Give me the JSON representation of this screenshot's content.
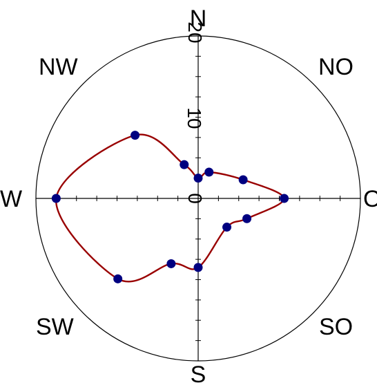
{
  "chart_data": {
    "type": "polar",
    "title": "",
    "directions": {
      "north": "N",
      "northeast": "NO",
      "east": "O",
      "southeast": "SO",
      "south": "S",
      "southwest": "SW",
      "west": "W",
      "northwest": "NW"
    },
    "radial_ticks": [
      "0",
      "10",
      "20"
    ],
    "radial_range": [
      0,
      20
    ],
    "grid": false,
    "series": [
      {
        "points": [
          {
            "bearing": 0,
            "r": 2.5
          },
          {
            "bearing": 22.5,
            "r": 3.5
          },
          {
            "bearing": 67.5,
            "r": 6.0
          },
          {
            "bearing": 90,
            "r": 10.6
          },
          {
            "bearing": 112.5,
            "r": 6.5
          },
          {
            "bearing": 135,
            "r": 5.0
          },
          {
            "bearing": 180,
            "r": 8.5
          },
          {
            "bearing": 202.5,
            "r": 8.7
          },
          {
            "bearing": 225,
            "r": 14.0
          },
          {
            "bearing": 270,
            "r": 17.5
          },
          {
            "bearing": 315,
            "r": 11.0
          },
          {
            "bearing": 337.5,
            "r": 4.5
          }
        ],
        "line_color": "#990000",
        "marker_color": "#000080"
      }
    ]
  }
}
